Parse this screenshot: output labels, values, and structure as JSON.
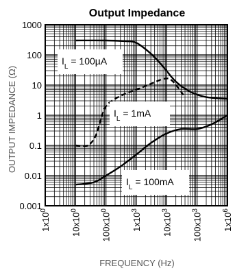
{
  "chart_data": {
    "type": "line",
    "title": "Output Impedance",
    "xlabel": "FREQUENCY (Hz)",
    "ylabel": "OUTPUT IMPEDANCE (Ω)",
    "x_scale": "log",
    "y_scale": "log",
    "xlim": [
      1,
      1000000
    ],
    "ylim": [
      0.001,
      1000
    ],
    "grid": true,
    "x_ticks": [
      {
        "value": 1,
        "base": "1x10",
        "exp": "0"
      },
      {
        "value": 10,
        "base": "10x10",
        "exp": "0"
      },
      {
        "value": 100,
        "base": "100x10",
        "exp": "0"
      },
      {
        "value": 1000,
        "base": "1x10",
        "exp": "3"
      },
      {
        "value": 10000,
        "base": "10x10",
        "exp": "3"
      },
      {
        "value": 100000,
        "base": "100x10",
        "exp": "3"
      },
      {
        "value": 1000000,
        "base": "1x10",
        "exp": "6"
      }
    ],
    "y_ticks": [
      {
        "value": 0.001,
        "label": "0.001"
      },
      {
        "value": 0.01,
        "label": "0.01"
      },
      {
        "value": 0.1,
        "label": "0.1"
      },
      {
        "value": 1,
        "label": "1"
      },
      {
        "value": 10,
        "label": "10"
      },
      {
        "value": 100,
        "label": "100"
      },
      {
        "value": 1000,
        "label": "1000"
      }
    ],
    "series": [
      {
        "annotation": {
          "main": "I",
          "sub": "L",
          "text": " = 100µA"
        },
        "dash": "solid",
        "points": [
          [
            10,
            300
          ],
          [
            100,
            300
          ],
          [
            400,
            285
          ],
          [
            1000,
            250
          ],
          [
            3000,
            110
          ],
          [
            7000,
            45
          ],
          [
            20000,
            13
          ],
          [
            60000,
            6
          ],
          [
            200000,
            4
          ],
          [
            1000000,
            3.5
          ]
        ]
      },
      {
        "annotation": {
          "main": "I",
          "sub": "L",
          "text": " = 1mA"
        },
        "dash": "dashed",
        "points": [
          [
            10,
            0.1
          ],
          [
            25,
            0.1
          ],
          [
            45,
            0.2
          ],
          [
            70,
            0.8
          ],
          [
            100,
            2
          ],
          [
            200,
            3.5
          ],
          [
            500,
            5.5
          ],
          [
            1000,
            7
          ],
          [
            3000,
            11
          ],
          [
            8000,
            16
          ],
          [
            15000,
            14
          ],
          [
            40000,
            4
          ]
        ]
      },
      {
        "annotation": {
          "main": "I",
          "sub": "L",
          "text": " = 100mA"
        },
        "dash": "solid",
        "points": [
          [
            10,
            0.005
          ],
          [
            40,
            0.006
          ],
          [
            100,
            0.01
          ],
          [
            300,
            0.02
          ],
          [
            1000,
            0.05
          ],
          [
            3000,
            0.12
          ],
          [
            10000,
            0.25
          ],
          [
            30000,
            0.35
          ],
          [
            100000,
            0.35
          ],
          [
            300000,
            0.5
          ],
          [
            1000000,
            1
          ]
        ]
      }
    ]
  }
}
